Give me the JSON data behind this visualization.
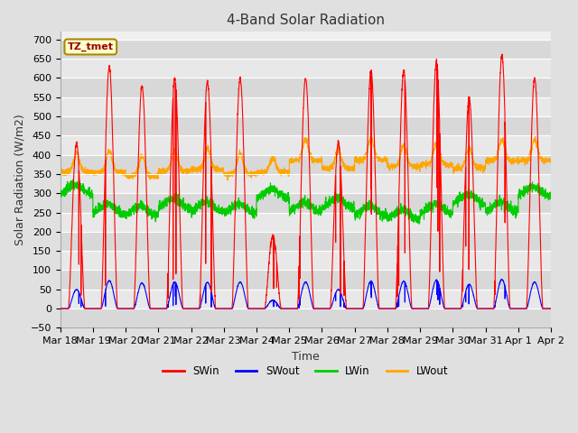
{
  "title": "4-Band Solar Radiation",
  "xlabel": "Time",
  "ylabel": "Solar Radiation (W/m2)",
  "annotation": "TZ_tmet",
  "ylim": [
    -50,
    720
  ],
  "colors": {
    "SWin": "#ff0000",
    "SWout": "#0000ff",
    "LWin": "#00cc00",
    "LWout": "#ffa500"
  },
  "fig_bg_color": "#e0e0e0",
  "plot_bg_color": "#f0f0f0",
  "grid_color": "#ffffff",
  "annotation_bg": "#ffffcc",
  "annotation_border": "#aa8800",
  "annotation_text_color": "#990000",
  "linewidth": 0.8,
  "title_fontsize": 11,
  "axis_label_fontsize": 9,
  "tick_fontsize": 8
}
